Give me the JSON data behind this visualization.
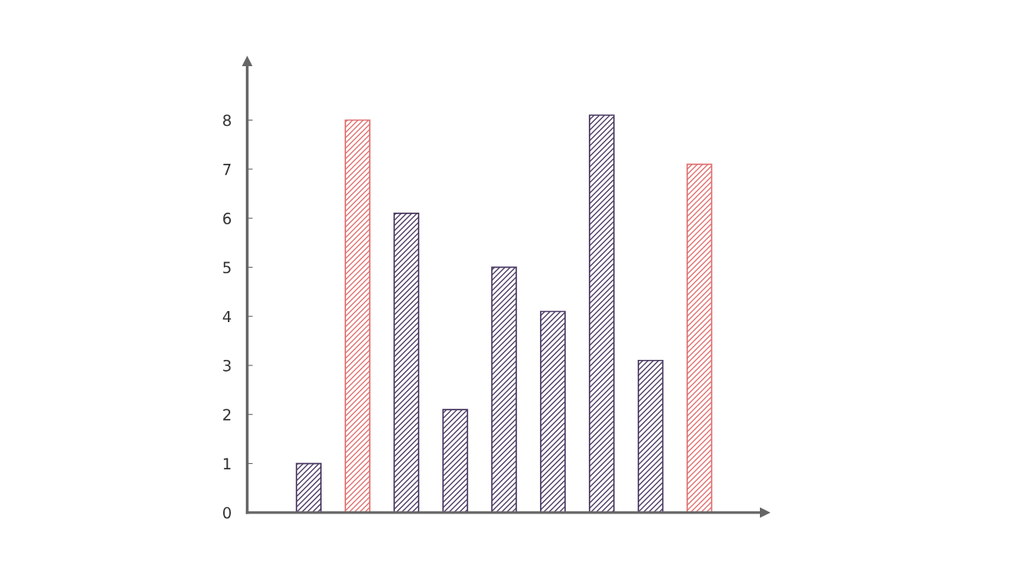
{
  "chart_data": {
    "type": "bar",
    "categories": [
      null,
      null,
      null,
      null,
      null,
      null,
      null,
      null,
      null
    ],
    "values": [
      1,
      8,
      6.1,
      2.1,
      5,
      4.1,
      8.1,
      3.1,
      7.1
    ],
    "colors": [
      "#4b3a63",
      "#e07070",
      "#4b3a63",
      "#4b3a63",
      "#4b3a63",
      "#4b3a63",
      "#4b3a63",
      "#4b3a63",
      "#e07070"
    ],
    "ylim": [
      0,
      9.2
    ],
    "yticks": [
      0,
      1,
      2,
      3,
      4,
      5,
      6,
      7,
      8
    ],
    "grid": false,
    "legend": false
  }
}
